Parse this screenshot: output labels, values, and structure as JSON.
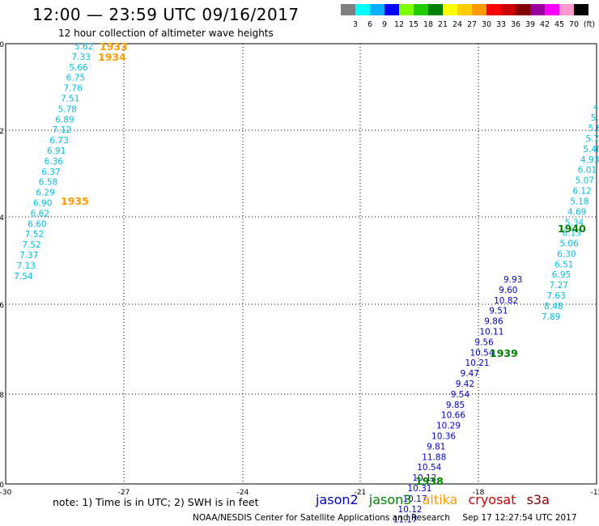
{
  "header": {
    "title": "12:00 — 23:59 UTC 09/16/2017",
    "subtitle": "12 hour collection of altimeter wave heights"
  },
  "colorbar": {
    "colors": [
      "#808080",
      "#00ffff",
      "#00b0ff",
      "#0000ff",
      "#7fff00",
      "#22cc00",
      "#008000",
      "#ffff00",
      "#ffcc00",
      "#ff9900",
      "#ff0000",
      "#cc0000",
      "#800000",
      "#990099",
      "#ff00ff",
      "#ff99cc",
      "#000000"
    ],
    "labels": [
      "3",
      "6",
      "9",
      "12",
      "15",
      "18",
      "21",
      "24",
      "27",
      "30",
      "33",
      "36",
      "39",
      "42",
      "45",
      "70"
    ],
    "unit": "(ft)"
  },
  "map": {
    "lat_ticks": [
      "-30",
      "-32",
      "-34",
      "-36",
      "-38",
      "-40"
    ],
    "lon_ticks": [
      "-30",
      "-27",
      "-24",
      "-21",
      "-18",
      "-15"
    ]
  },
  "labels": {
    "pass_left": {
      "color": "#00c0e0",
      "values": [
        "5.62",
        "7.33",
        "5.66",
        "6.75",
        "7.76",
        "7.51",
        "5.78",
        "6.89",
        "7.12",
        "6.73",
        "6.91",
        "6.36",
        "6.37",
        "6.58",
        "6.29",
        "6.90",
        "6.62",
        "6.60",
        "7.52",
        "7.52",
        "7.37",
        "7.13",
        "7.54"
      ]
    },
    "pass_right_cyan": {
      "color": "#00c0e0",
      "values": [
        "4",
        "5.",
        "5.6",
        "5.79",
        "5.40",
        "4.93",
        "6.01",
        "5.07",
        "6.12",
        "5.18",
        "4.69",
        "5.34",
        "6.13",
        "5.06",
        "6.30",
        "6.51",
        "6.95",
        "7.27",
        "7.63",
        "8.48",
        "7.89"
      ]
    },
    "pass_right_blue": {
      "color": "#0000cc",
      "values": [
        "9.93",
        "9.60",
        "10.82",
        "9.51",
        "9.86",
        "10.11",
        "9.56",
        "10.54",
        "10.21",
        "9.47",
        "9.42",
        "9.54",
        "9.85",
        "10.66",
        "10.29",
        "10.36",
        "9.81",
        "11.88",
        "10.54",
        "10.12",
        "10.31",
        "10.17",
        "10.12",
        "11.17",
        "11.29"
      ]
    },
    "times": [
      {
        "text": "1933",
        "color": "#ff9900"
      },
      {
        "text": "1934",
        "color": "#ff9900"
      },
      {
        "text": "1935",
        "color": "#ff9900"
      },
      {
        "text": "1940",
        "color": "#008000"
      },
      {
        "text": "1939",
        "color": "#008000"
      },
      {
        "text": "1938",
        "color": "#008000"
      }
    ]
  },
  "footer": {
    "note": "note:  1) Time is in UTC;  2) SWH is in feet",
    "legend": [
      {
        "name": "jason2",
        "color": "#0000cc"
      },
      {
        "name": "jason3",
        "color": "#008000"
      },
      {
        "name": "altika",
        "color": "#ff9900"
      },
      {
        "name": "cryosat",
        "color": "#cc0000"
      },
      {
        "name": "s3a",
        "color": "#800000"
      }
    ],
    "credit": "NOAA/NESDIS Center for Satellite Applications and Research",
    "timestamp": "Sep 17 12:27:54 UTC 2017"
  }
}
